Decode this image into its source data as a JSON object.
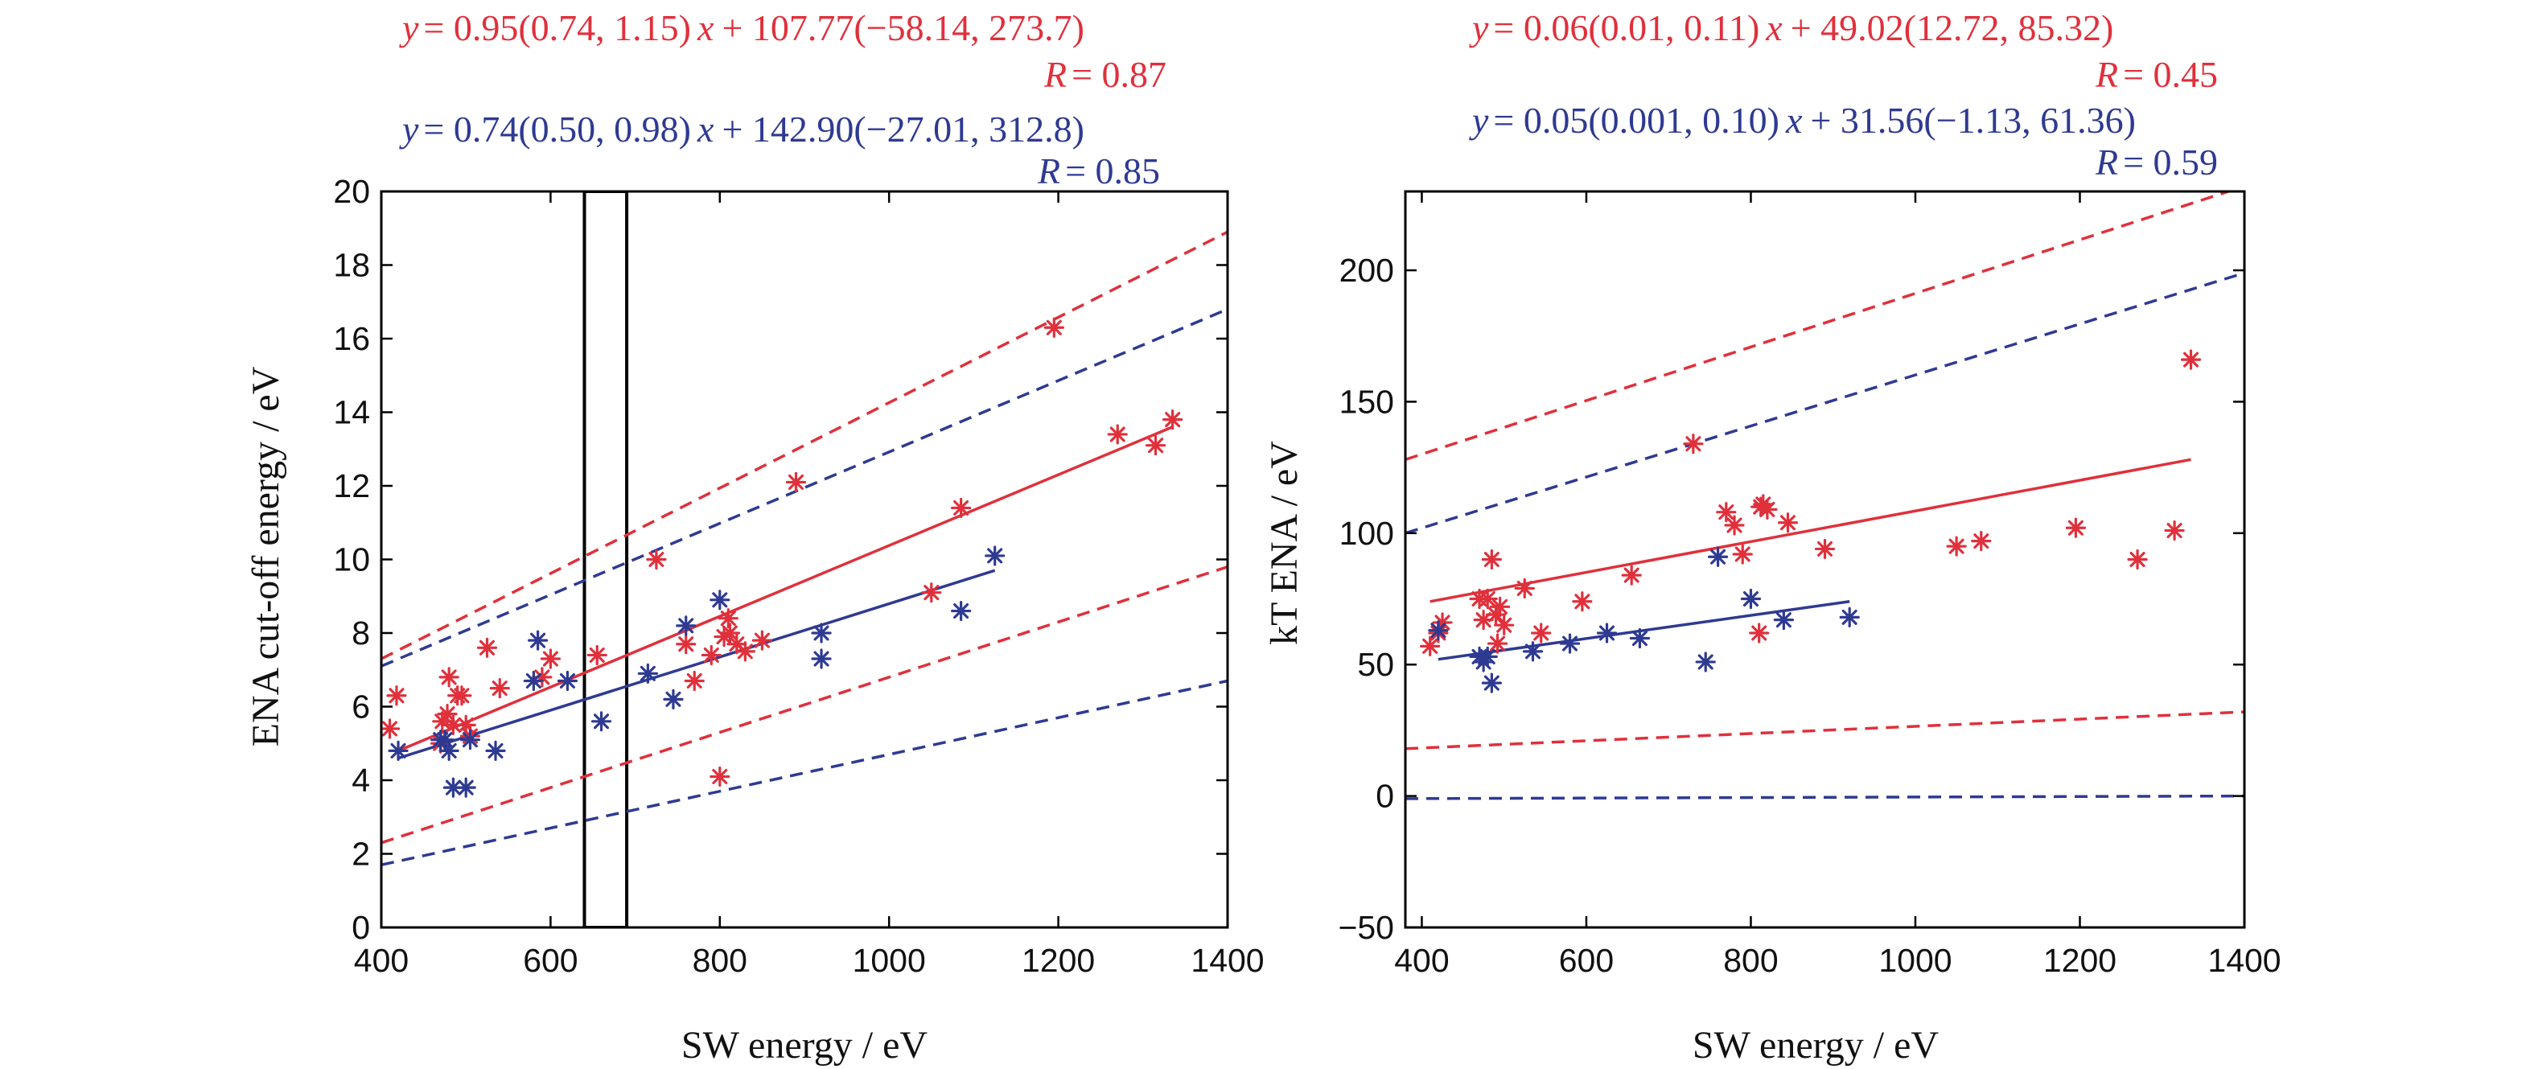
{
  "colors": {
    "red": "#e0303b",
    "blue": "#2e3a92",
    "axis": "#000000"
  },
  "chart_data": [
    {
      "type": "scatter",
      "xlabel": "SW energy / eV",
      "ylabel": "ENA cut-off energy / eV",
      "xlim": [
        400,
        1400
      ],
      "ylim": [
        0,
        20
      ],
      "xticks": [
        "400",
        "600",
        "800",
        "1000",
        "1200",
        "1400"
      ],
      "yticks": [
        "0",
        "2",
        "4",
        "6",
        "8",
        "10",
        "12",
        "14",
        "16",
        "18",
        "20"
      ],
      "grid": false,
      "highlight_box": {
        "x": [
          640,
          690
        ],
        "y": [
          0,
          20
        ]
      },
      "fits": [
        {
          "color": "red",
          "equation": "y = 0.95(0.74, 1.15) x + 107.77(−58.14, 273.7)",
          "r_label": "R = 0.87",
          "line": {
            "x0": 420,
            "y0": 4.8,
            "x1": 1335,
            "y1": 13.6
          },
          "band_upper": {
            "x0": 400,
            "y0": 7.3,
            "x1": 1400,
            "y1": 18.9
          },
          "band_lower": {
            "x0": 400,
            "y0": 2.3,
            "x1": 1400,
            "y1": 9.8
          }
        },
        {
          "color": "blue",
          "equation": "y = 0.74(0.50, 0.98) x + 142.90(−27.01, 312.8)",
          "r_label": "R = 0.85",
          "line": {
            "x0": 420,
            "y0": 4.6,
            "x1": 1125,
            "y1": 9.7
          },
          "band_upper": {
            "x0": 400,
            "y0": 7.1,
            "x1": 1400,
            "y1": 16.8
          },
          "band_lower": {
            "x0": 400,
            "y0": 1.7,
            "x1": 1400,
            "y1": 6.7
          }
        }
      ],
      "series": [
        {
          "color": "red",
          "points": [
            [
              410,
              5.4
            ],
            [
              418,
              6.3
            ],
            [
              470,
              5.0
            ],
            [
              472,
              5.6
            ],
            [
              478,
              5.8
            ],
            [
              480,
              6.8
            ],
            [
              485,
              5.5
            ],
            [
              490,
              6.3
            ],
            [
              495,
              6.3
            ],
            [
              500,
              5.5
            ],
            [
              505,
              5.2
            ],
            [
              525,
              7.6
            ],
            [
              540,
              6.5
            ],
            [
              590,
              6.8
            ],
            [
              600,
              7.3
            ],
            [
              655,
              7.4
            ],
            [
              725,
              10.0
            ],
            [
              760,
              7.7
            ],
            [
              770,
              6.7
            ],
            [
              790,
              7.4
            ],
            [
              800,
              4.1
            ],
            [
              805,
              7.9
            ],
            [
              810,
              8.4
            ],
            [
              812,
              8.0
            ],
            [
              820,
              7.7
            ],
            [
              830,
              7.5
            ],
            [
              850,
              7.8
            ],
            [
              890,
              12.1
            ],
            [
              1050,
              9.1
            ],
            [
              1085,
              11.4
            ],
            [
              1195,
              16.3
            ],
            [
              1270,
              13.4
            ],
            [
              1315,
              13.1
            ],
            [
              1335,
              13.8
            ]
          ]
        },
        {
          "color": "blue",
          "points": [
            [
              420,
              4.8
            ],
            [
              470,
              5.1
            ],
            [
              475,
              5.1
            ],
            [
              480,
              4.8
            ],
            [
              485,
              3.8
            ],
            [
              500,
              3.8
            ],
            [
              505,
              5.1
            ],
            [
              535,
              4.8
            ],
            [
              580,
              6.7
            ],
            [
              585,
              7.8
            ],
            [
              620,
              6.7
            ],
            [
              660,
              5.6
            ],
            [
              715,
              6.9
            ],
            [
              745,
              6.2
            ],
            [
              760,
              8.2
            ],
            [
              800,
              8.9
            ],
            [
              920,
              7.3
            ],
            [
              920,
              8.0
            ],
            [
              1085,
              8.6
            ],
            [
              1125,
              10.1
            ]
          ]
        }
      ]
    },
    {
      "type": "scatter",
      "xlabel": "SW energy / eV",
      "ylabel": "kT ENA / eV",
      "xlim": [
        380,
        1400
      ],
      "ylim": [
        -50,
        230
      ],
      "xticks": [
        "400",
        "600",
        "800",
        "1000",
        "1200",
        "1400"
      ],
      "yticks": [
        "−50",
        "0",
        "50",
        "100",
        "150",
        "200"
      ],
      "grid": false,
      "fits": [
        {
          "color": "red",
          "equation": "y = 0.06(0.01, 0.11) x + 49.02(12.72, 85.32)",
          "r_label": "R = 0.45",
          "line": {
            "x0": 410,
            "y0": 74,
            "x1": 1335,
            "y1": 128
          },
          "band_upper": {
            "x0": 380,
            "y0": 128,
            "x1": 1400,
            "y1": 232
          },
          "band_lower": {
            "x0": 380,
            "y0": 18,
            "x1": 1400,
            "y1": 32
          }
        },
        {
          "color": "blue",
          "equation": "y = 0.05(0.001, 0.10) x + 31.56(−1.13, 61.36)",
          "r_label": "R = 0.59",
          "line": {
            "x0": 420,
            "y0": 52,
            "x1": 920,
            "y1": 74
          },
          "band_upper": {
            "x0": 380,
            "y0": 100,
            "x1": 1400,
            "y1": 199
          },
          "band_lower": {
            "x0": 380,
            "y0": -1,
            "x1": 1400,
            "y1": 0
          }
        }
      ],
      "series": [
        {
          "color": "red",
          "points": [
            [
              410,
              57
            ],
            [
              420,
              62
            ],
            [
              425,
              66
            ],
            [
              470,
              75
            ],
            [
              475,
              67
            ],
            [
              480,
              75
            ],
            [
              485,
              90
            ],
            [
              490,
              69
            ],
            [
              492,
              58
            ],
            [
              495,
              72
            ],
            [
              500,
              65
            ],
            [
              525,
              79
            ],
            [
              545,
              62
            ],
            [
              595,
              74
            ],
            [
              655,
              84
            ],
            [
              730,
              134
            ],
            [
              770,
              108
            ],
            [
              780,
              103
            ],
            [
              790,
              92
            ],
            [
              810,
              62
            ],
            [
              812,
              110
            ],
            [
              815,
              111
            ],
            [
              820,
              109
            ],
            [
              845,
              104
            ],
            [
              890,
              94
            ],
            [
              1050,
              95
            ],
            [
              1080,
              97
            ],
            [
              1195,
              102
            ],
            [
              1270,
              90
            ],
            [
              1315,
              101
            ],
            [
              1335,
              166
            ]
          ]
        },
        {
          "color": "blue",
          "points": [
            [
              420,
              63
            ],
            [
              470,
              53
            ],
            [
              475,
              51
            ],
            [
              480,
              53
            ],
            [
              485,
              43
            ],
            [
              535,
              55
            ],
            [
              580,
              58
            ],
            [
              625,
              62
            ],
            [
              665,
              60
            ],
            [
              745,
              51
            ],
            [
              760,
              91
            ],
            [
              800,
              75
            ],
            [
              840,
              67
            ],
            [
              920,
              68
            ]
          ]
        }
      ]
    }
  ],
  "annotations": {
    "left": {
      "red_eq": {
        "y": "y",
        "eq": "= 0.95(0.74, 1.15)",
        "x": "x",
        "rest": "+ 107.77(−58.14, 273.7)",
        "R": "R",
        "r_val": "= 0.87"
      },
      "blue_eq": {
        "y": "y",
        "eq": "= 0.74(0.50, 0.98)",
        "x": "x",
        "rest": "+ 142.90(−27.01, 312.8)",
        "R": "R",
        "r_val": "= 0.85"
      }
    },
    "right": {
      "red_eq": {
        "y": "y",
        "eq": "= 0.06(0.01, 0.11)",
        "x": "x",
        "rest": "+ 49.02(12.72, 85.32)",
        "R": "R",
        "r_val": "= 0.45"
      },
      "blue_eq": {
        "y": "y",
        "eq": "= 0.05(0.001, 0.10)",
        "x": "x",
        "rest": "+ 31.56(−1.13, 61.36)",
        "R": "R",
        "r_val": "= 0.59"
      }
    }
  }
}
